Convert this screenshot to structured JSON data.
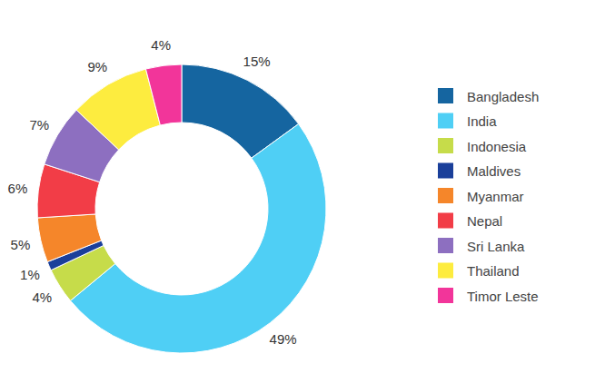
{
  "chart_data": {
    "type": "donut",
    "categories": [
      "Bangladesh",
      "India",
      "Indonesia",
      "Maldives",
      "Myanmar",
      "Nepal",
      "Sri Lanka",
      "Thailand",
      "Timor Leste"
    ],
    "values": [
      15,
      49,
      4,
      1,
      5,
      6,
      7,
      9,
      4
    ],
    "value_labels": [
      "15%",
      "49%",
      "4%",
      "1%",
      "5%",
      "6%",
      "7%",
      "9%",
      "4%"
    ],
    "colors": [
      "#1565a0",
      "#4fcff5",
      "#c6dc4a",
      "#1a3f9a",
      "#f5862a",
      "#f23d47",
      "#8d6fc0",
      "#fdec3f",
      "#f2359a"
    ],
    "data_labels": true,
    "legend": "right"
  }
}
